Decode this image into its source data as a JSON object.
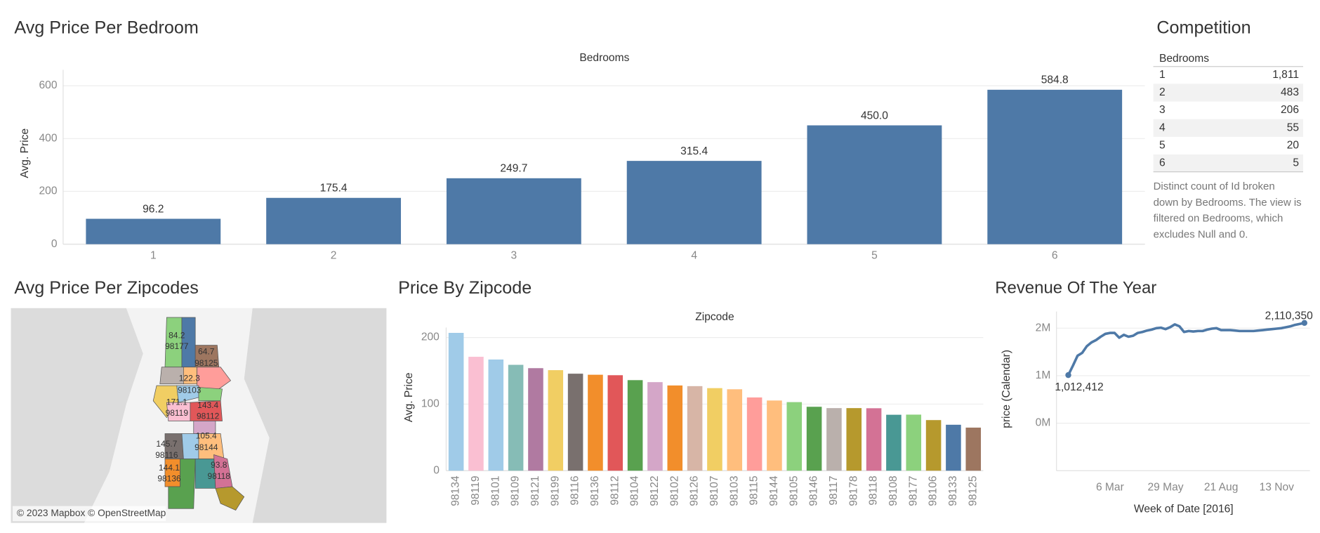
{
  "chart_data": [
    {
      "type": "bar",
      "title": "Avg Price Per Bedroom",
      "x_title": "Bedrooms",
      "y_title": "Avg. Price",
      "categories": [
        "1",
        "2",
        "3",
        "4",
        "5",
        "6"
      ],
      "values": [
        96.2,
        175.4,
        249.7,
        315.4,
        450.0,
        584.8
      ],
      "value_labels": [
        "96.2",
        "175.4",
        "249.7",
        "315.4",
        "450.0",
        "584.8"
      ],
      "color": "#4e79a7",
      "ylim": [
        0,
        660
      ],
      "yticks": [
        0,
        200,
        400,
        600
      ],
      "grid": true
    },
    {
      "type": "bar",
      "title": "Price By Zipcode",
      "x_title": "Zipcode",
      "y_title": "Avg. Price",
      "categories": [
        "98134",
        "98119",
        "98101",
        "98109",
        "98121",
        "98199",
        "98116",
        "98136",
        "98112",
        "98104",
        "98122",
        "98102",
        "98126",
        "98107",
        "98103",
        "98115",
        "98144",
        "98105",
        "98146",
        "98117",
        "98178",
        "98118",
        "98108",
        "98177",
        "98106",
        "98133",
        "98125"
      ],
      "values": [
        207,
        171.1,
        167,
        159,
        154,
        151,
        145.7,
        144.1,
        143.4,
        136,
        133,
        128,
        127,
        124,
        122.3,
        110,
        105.4,
        103,
        96,
        94,
        94,
        93.8,
        84,
        84.2,
        76,
        69,
        64.7
      ],
      "colors": [
        "#a0cbe8",
        "#fabfd2",
        "#a0cbe8",
        "#86bcb6",
        "#b07aa1",
        "#f1ce63",
        "#79706e",
        "#f28e2b",
        "#e15759",
        "#59a14f",
        "#d4a6c8",
        "#f28e2b",
        "#d7b5a6",
        "#f1ce63",
        "#ffbe7d",
        "#ff9d9a",
        "#ffbe7d",
        "#8cd17d",
        "#59a14f",
        "#bab0ac",
        "#b6992d",
        "#d37295",
        "#499894",
        "#8cd17d",
        "#b6992d",
        "#4e79a7",
        "#9d7660"
      ],
      "ylim": [
        0,
        215
      ],
      "yticks": [
        0,
        100,
        200
      ],
      "grid": true
    },
    {
      "type": "line",
      "title": "Revenue Of The Year",
      "x_title": "Week of Date [2016]",
      "y_title": "price (Calendar)",
      "categories": [
        "3 Jan",
        "10 Jan",
        "17 Jan",
        "24 Jan",
        "31 Jan",
        "7 Feb",
        "14 Feb",
        "21 Feb",
        "28 Feb",
        "6 Mar",
        "13 Mar",
        "20 Mar",
        "27 Mar",
        "3 Apr",
        "10 Apr",
        "17 Apr",
        "24 Apr",
        "1 May",
        "8 May",
        "15 May",
        "22 May",
        "29 May",
        "5 Jun",
        "12 Jun",
        "19 Jun",
        "26 Jun",
        "3 Jul",
        "10 Jul",
        "17 Jul",
        "24 Jul",
        "31 Jul",
        "7 Aug",
        "14 Aug",
        "21 Aug",
        "28 Aug",
        "4 Sep",
        "11 Sep",
        "18 Sep",
        "25 Sep",
        "2 Oct",
        "9 Oct",
        "16 Oct",
        "23 Oct",
        "30 Oct",
        "6 Nov",
        "13 Nov",
        "20 Nov",
        "27 Nov",
        "4 Dec",
        "11 Dec",
        "18 Dec",
        "25 Dec"
      ],
      "values": [
        1012412,
        1210000,
        1420000,
        1480000,
        1620000,
        1700000,
        1750000,
        1820000,
        1880000,
        1900000,
        1900000,
        1800000,
        1860000,
        1820000,
        1840000,
        1900000,
        1920000,
        1950000,
        1970000,
        2000000,
        2010000,
        1980000,
        2020000,
        2080000,
        2040000,
        1920000,
        1940000,
        1930000,
        1940000,
        1940000,
        1970000,
        1990000,
        2000000,
        1960000,
        1960000,
        1960000,
        1950000,
        1940000,
        1940000,
        1940000,
        1940000,
        1950000,
        1960000,
        1970000,
        1980000,
        1990000,
        2000000,
        2020000,
        2040000,
        2070000,
        2090000,
        2110350
      ],
      "value_labels": [
        "1,012,412",
        null,
        null,
        null,
        null,
        null,
        null,
        null,
        null,
        null,
        null,
        null,
        null,
        null,
        null,
        null,
        null,
        null,
        null,
        null,
        null,
        null,
        null,
        null,
        null,
        null,
        null,
        null,
        null,
        null,
        null,
        null,
        null,
        null,
        null,
        null,
        null,
        null,
        null,
        null,
        null,
        null,
        null,
        null,
        null,
        null,
        null,
        null,
        null,
        null,
        null,
        "2,110,350"
      ],
      "color": "#4e79a7",
      "xticks": [
        "6 Mar",
        "29 May",
        "21 Aug",
        "13 Nov"
      ],
      "ylim": [
        -1000000,
        2350000
      ],
      "yticks": [
        {
          "value": 0,
          "label": "0M"
        },
        {
          "value": 1000000,
          "label": "1M"
        },
        {
          "value": 2000000,
          "label": "2M"
        }
      ],
      "grid": true
    }
  ],
  "map": {
    "title": "Avg Price Per Zipcodes",
    "attribution": "© 2023 Mapbox © OpenStreetMap",
    "labels": [
      {
        "value": "84.2",
        "zipcode": "98177"
      },
      {
        "value": "64.7",
        "zipcode": "98125"
      },
      {
        "value": "122.3",
        "zipcode": "98103"
      },
      {
        "value": "171.1",
        "zipcode": "98119"
      },
      {
        "value": "143.4",
        "zipcode": "98112"
      },
      {
        "value": "145.7",
        "zipcode": "98116"
      },
      {
        "value": "105.4",
        "zipcode": "98144"
      },
      {
        "value": "144.1",
        "zipcode": "98136"
      },
      {
        "value": "93.8",
        "zipcode": "98118"
      }
    ]
  },
  "competition": {
    "title": "Competition",
    "header": "Bedrooms",
    "rows": [
      [
        "1",
        "1,811"
      ],
      [
        "2",
        "483"
      ],
      [
        "3",
        "206"
      ],
      [
        "4",
        "55"
      ],
      [
        "5",
        "20"
      ],
      [
        "6",
        "5"
      ]
    ],
    "note": [
      "Distinct count of Id broken",
      "down by Bedrooms. The view is",
      "filtered on Bedrooms, which",
      "excludes Null and 0."
    ]
  }
}
